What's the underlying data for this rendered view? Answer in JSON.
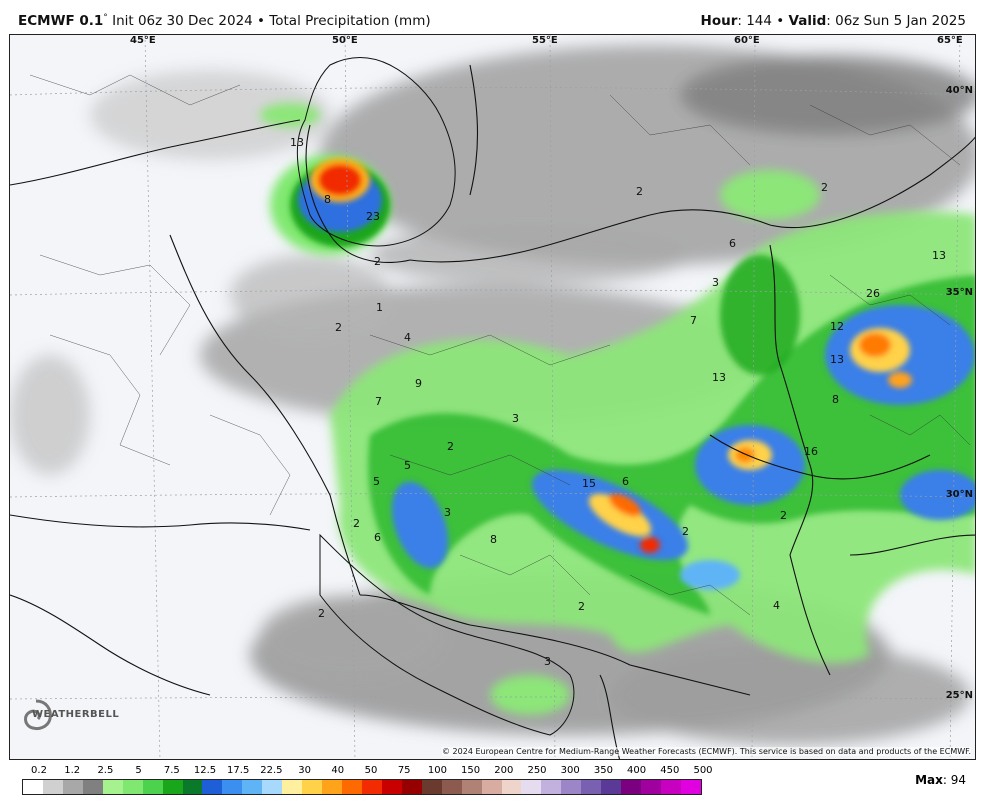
{
  "header": {
    "model": "ECMWF 0.1",
    "degree": "°",
    "init": " Init 06z 30 Dec 2024 • Total Precipitation (mm)",
    "hour_label": "Hour",
    "hour_value": ": 144 • ",
    "valid_label": "Valid",
    "valid_value": ": 06z Sun 5 Jan 2025"
  },
  "map": {
    "lon_labels": [
      "45°E",
      "50°E",
      "55°E",
      "60°E",
      "65°E"
    ],
    "lat_labels": [
      "40°N",
      "35°N",
      "30°N",
      "25°N"
    ],
    "contour_values": [
      {
        "text": "13"
      },
      {
        "text": "8"
      },
      {
        "text": "23"
      },
      {
        "text": "2"
      },
      {
        "text": "2"
      },
      {
        "text": "6"
      },
      {
        "text": "3"
      },
      {
        "text": "2"
      },
      {
        "text": "13"
      },
      {
        "text": "26"
      },
      {
        "text": "12"
      },
      {
        "text": "13"
      },
      {
        "text": "8"
      },
      {
        "text": "16"
      },
      {
        "text": "2"
      },
      {
        "text": "1"
      },
      {
        "text": "2"
      },
      {
        "text": "4"
      },
      {
        "text": "7"
      },
      {
        "text": "9"
      },
      {
        "text": "7"
      },
      {
        "text": "13"
      },
      {
        "text": "3"
      },
      {
        "text": "2"
      },
      {
        "text": "5"
      },
      {
        "text": "5"
      },
      {
        "text": "3"
      },
      {
        "text": "8"
      },
      {
        "text": "2"
      },
      {
        "text": "6"
      },
      {
        "text": "15"
      },
      {
        "text": "6"
      },
      {
        "text": "2"
      },
      {
        "text": "2"
      },
      {
        "text": "4"
      },
      {
        "text": "2"
      },
      {
        "text": "3"
      }
    ],
    "copyright": "© 2024 European Centre for Medium-Range Weather Forecasts (ECMWF). This service is based on data and products of the ECMWF.",
    "logo_text": "WEATHERBELL"
  },
  "legend": {
    "ticks": [
      "0.2",
      "1.2",
      "2.5",
      "5",
      "7.5",
      "12.5",
      "17.5",
      "22.5",
      "30",
      "40",
      "50",
      "75",
      "100",
      "150",
      "200",
      "250",
      "300",
      "350",
      "400",
      "450",
      "500"
    ],
    "colors": [
      "#ffffff",
      "#d0d0d0",
      "#a8a8a8",
      "#808080",
      "#a6f28f",
      "#80e870",
      "#4cd24c",
      "#1aa61a",
      "#0a7a2a",
      "#1e5fd8",
      "#3a8ff0",
      "#5fb4f6",
      "#a6d9fb",
      "#fff0a0",
      "#ffd24a",
      "#ffa31a",
      "#ff6a00",
      "#f22b00",
      "#c80000",
      "#960000",
      "#6b3a2e",
      "#8c5a4e",
      "#b08276",
      "#d8aca0",
      "#efd4cc",
      "#e6dcf0",
      "#c2b0de",
      "#9c86c8",
      "#7a60b0",
      "#5a3a96",
      "#7a0080",
      "#a0009e",
      "#c800c0",
      "#e000e0"
    ],
    "max_label": "Max",
    "max_value": ": 94"
  }
}
